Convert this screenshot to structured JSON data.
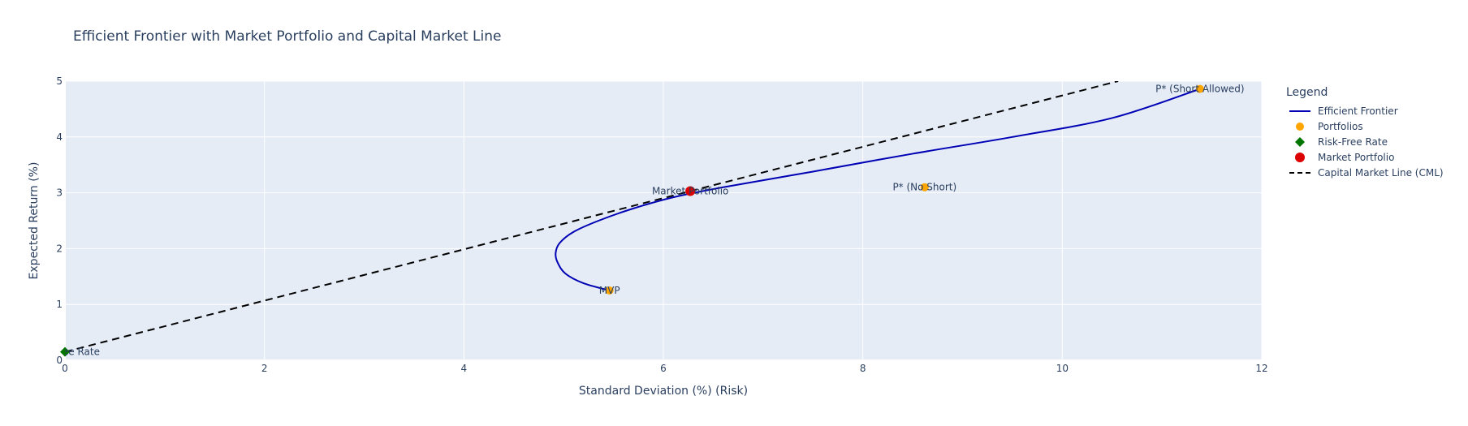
{
  "chart_data": {
    "type": "scatter",
    "title": "Efficient Frontier with Market Portfolio and Capital Market Line",
    "xlabel": "Standard Deviation (%) (Risk)",
    "ylabel": "Expected Return (%)",
    "xlim": [
      0,
      12
    ],
    "ylim": [
      0,
      5
    ],
    "xticks": [
      0,
      2,
      4,
      6,
      8,
      10,
      12
    ],
    "yticks": [
      0,
      1,
      2,
      3,
      4,
      5
    ],
    "grid": true,
    "legend_title": "Legend",
    "legend_position": "right",
    "series": [
      {
        "name": "Efficient Frontier",
        "mode": "line",
        "color": "#0000b4",
        "points": [
          [
            5.46,
            1.25
          ],
          [
            5.2,
            1.38
          ],
          [
            5.02,
            1.55
          ],
          [
            4.94,
            1.75
          ],
          [
            4.92,
            1.92
          ],
          [
            4.96,
            2.1
          ],
          [
            5.1,
            2.3
          ],
          [
            5.35,
            2.5
          ],
          [
            5.7,
            2.72
          ],
          [
            6.1,
            2.92
          ],
          [
            6.6,
            3.1
          ],
          [
            7.5,
            3.38
          ],
          [
            8.5,
            3.7
          ],
          [
            9.5,
            4.0
          ],
          [
            10.5,
            4.34
          ],
          [
            11.38,
            4.86
          ]
        ]
      },
      {
        "name": "Portfolios",
        "mode": "markers",
        "color": "#ffa500",
        "points": [
          {
            "x": 5.46,
            "y": 1.25,
            "label": "MVP"
          },
          {
            "x": 8.62,
            "y": 3.1,
            "label": "P* (No Short)"
          },
          {
            "x": 11.38,
            "y": 4.86,
            "label": "P* (Short Allowed)"
          }
        ]
      },
      {
        "name": "Risk-Free Rate",
        "mode": "markers",
        "marker": "diamond",
        "color": "#007500",
        "points": [
          {
            "x": 0,
            "y": 0.15,
            "label": "Risk-Free Rate"
          }
        ]
      },
      {
        "name": "Market Portfolio",
        "mode": "markers",
        "color": "#dd0000",
        "points": [
          {
            "x": 6.27,
            "y": 3.03,
            "label": "Market Portfolio"
          }
        ]
      },
      {
        "name": "Capital Market Line (CML)",
        "mode": "line",
        "dash": "dash",
        "color": "#000000",
        "points": [
          [
            0,
            0.15
          ],
          [
            10.56,
            5.0
          ]
        ]
      }
    ]
  }
}
